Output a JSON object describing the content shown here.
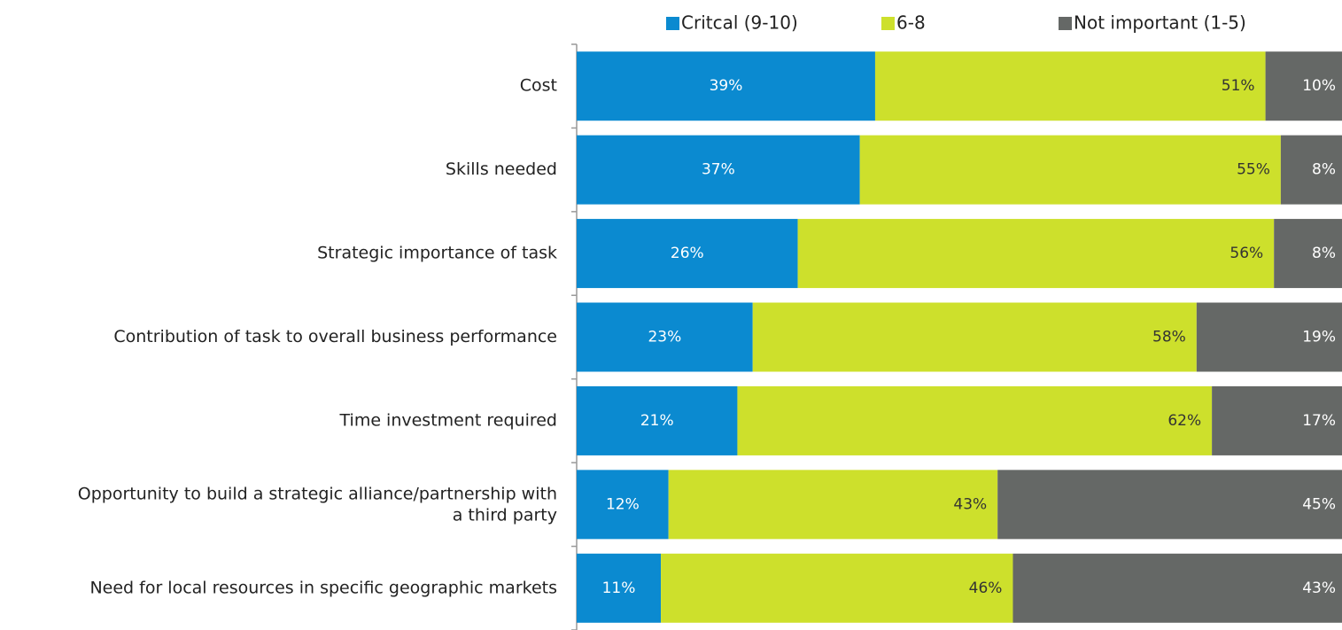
{
  "chart_data": {
    "type": "bar",
    "orientation": "horizontal",
    "stacking": "percent",
    "legend": "top",
    "categories": [
      "Cost",
      "Skills needed",
      "Strategic importance of task",
      "Contribution of task to overall business performance",
      "Time investment required",
      "Opportunity to build a strategic alliance/partnership with\na third party",
      "Need for local resources in specific geographic markets"
    ],
    "series": [
      {
        "name": "Critcal (9-10)",
        "color": "#0b8ad0",
        "label_color": "#ffffff",
        "values": [
          39,
          37,
          26,
          23,
          21,
          12,
          11
        ],
        "value_labels": [
          "39%",
          "37%",
          "26%",
          "23%",
          "21%",
          "12%",
          "11%"
        ]
      },
      {
        "name": "6-8",
        "color": "#cde02c",
        "label_color": "#333333",
        "values": [
          51,
          55,
          56,
          58,
          62,
          43,
          46
        ],
        "value_labels": [
          "51%",
          "55%",
          "56%",
          "58%",
          "62%",
          "43%",
          "46%"
        ]
      },
      {
        "name": "Not important (1-5)",
        "color": "#656866",
        "label_color": "#ffffff",
        "values": [
          10,
          8,
          8,
          19,
          17,
          45,
          43
        ],
        "value_labels": [
          "10%",
          "8%",
          "8%",
          "19%",
          "17%",
          "45%",
          "43%"
        ]
      }
    ]
  }
}
